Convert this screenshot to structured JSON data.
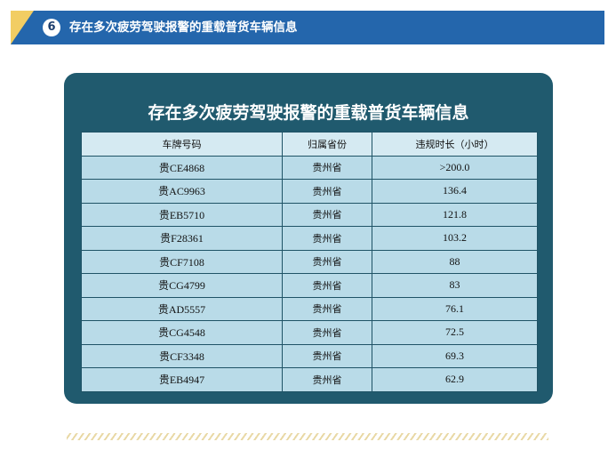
{
  "header": {
    "badge_number": "6",
    "title": "存在多次疲劳驾驶报警的重载普货车辆信息"
  },
  "card": {
    "title": "存在多次疲劳驾驶报警的重载普货车辆信息"
  },
  "table": {
    "columns": [
      "车牌号码",
      "归属省份",
      "违规时长（小时）"
    ],
    "rows": [
      {
        "plate": "贵CE4868",
        "province": "贵州省",
        "hours": ">200.0"
      },
      {
        "plate": "贵AC9963",
        "province": "贵州省",
        "hours": "136.4"
      },
      {
        "plate": "贵EB5710",
        "province": "贵州省",
        "hours": "121.8"
      },
      {
        "plate": "贵F28361",
        "province": "贵州省",
        "hours": "103.2"
      },
      {
        "plate": "贵CF7108",
        "province": "贵州省",
        "hours": "88"
      },
      {
        "plate": "贵CG4799",
        "province": "贵州省",
        "hours": "83"
      },
      {
        "plate": "贵AD5557",
        "province": "贵州省",
        "hours": "76.1"
      },
      {
        "plate": "贵CG4548",
        "province": "贵州省",
        "hours": "72.5"
      },
      {
        "plate": "贵CF3348",
        "province": "贵州省",
        "hours": "69.3"
      },
      {
        "plate": "贵EB4947",
        "province": "贵州省",
        "hours": "62.9"
      }
    ]
  },
  "colors": {
    "banner": "#2466ac",
    "banner_accent": "#f2cd63",
    "card": "#205a6e",
    "table_header": "#d5eaf2",
    "table_cell": "#b9dbe8",
    "divider_hatch": "#e9d9a6"
  }
}
